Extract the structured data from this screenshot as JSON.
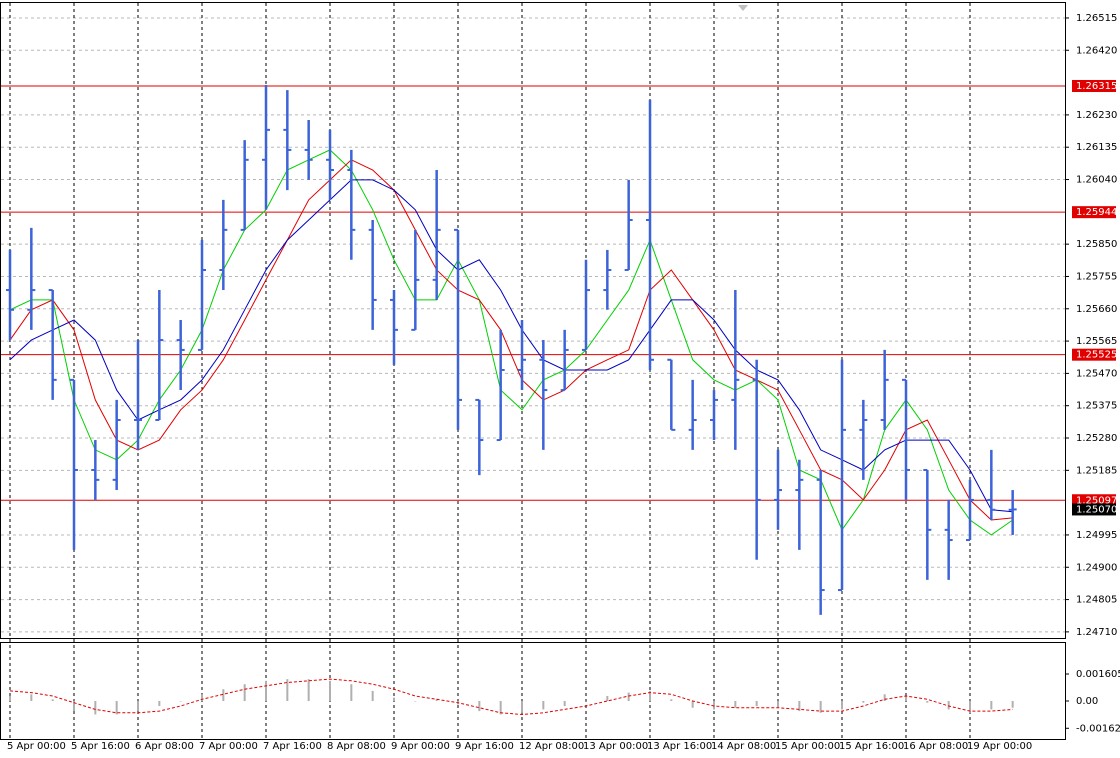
{
  "chart_data": [
    {
      "type": "ohlc",
      "categories": [
        "5 Apr 00:00",
        null,
        null,
        "5 Apr 16:00",
        null,
        null,
        "6 Apr 08:00",
        null,
        null,
        "7 Apr 00:00",
        null,
        null,
        "7 Apr 16:00",
        null,
        null,
        "8 Apr 08:00",
        null,
        null,
        "9 Apr 00:00",
        null,
        null,
        "9 Apr 16:00",
        null,
        null,
        "12 Apr 08:00",
        null,
        null,
        "13 Apr 00:00",
        null,
        null,
        "13 Apr 16:00",
        null,
        null,
        "14 Apr 08:00",
        null,
        null,
        "15 Apr 00:00",
        null,
        null,
        "15 Apr 16:00",
        null,
        null,
        "16 Apr 08:00",
        null,
        null,
        "19 Apr 00:00",
        null,
        null
      ],
      "open": [
        1.25715,
        1.25657,
        1.25715,
        1.25451,
        1.25186,
        1.25157,
        1.25333,
        1.25333,
        1.25568,
        1.25539,
        1.25774,
        1.25892,
        1.26098,
        1.26186,
        1.26127,
        1.26098,
        1.26068,
        1.25892,
        1.25686,
        1.25598,
        1.25745,
        1.25892,
        1.25392,
        1.25274,
        1.2548,
        1.2551,
        1.25421,
        1.25539,
        1.25715,
        1.25774,
        1.25921,
        1.2551,
        1.25304,
        1.25333,
        1.25392,
        1.25451,
        1.25098,
        1.25127,
        1.25157,
        1.24833,
        1.25304,
        1.25333,
        1.25451,
        1.25186,
        1.2501,
        1.2498,
        1.25098,
        1.25069
      ],
      "high": [
        1.25833,
        1.25898,
        1.25715,
        1.25451,
        1.25274,
        1.25392,
        1.25568,
        1.25715,
        1.25627,
        1.25862,
        1.2598,
        1.26156,
        1.26318,
        1.26303,
        1.26215,
        1.26186,
        1.26127,
        1.25921,
        1.25715,
        1.25892,
        1.26068,
        1.25892,
        1.25392,
        1.25598,
        1.25627,
        1.25568,
        1.25598,
        1.25804,
        1.25833,
        1.26039,
        1.26274,
        1.2551,
        1.25451,
        1.25421,
        1.25715,
        1.2551,
        1.25245,
        1.25216,
        1.25186,
        1.2551,
        1.25392,
        1.25539,
        1.25451,
        1.25186,
        1.25098,
        1.25157,
        1.25245,
        1.25127
      ],
      "low": [
        1.25568,
        1.25598,
        1.25392,
        1.24951,
        1.25098,
        1.25127,
        1.25245,
        1.25333,
        1.25421,
        1.25539,
        1.25715,
        1.25892,
        1.25951,
        1.26009,
        1.26039,
        1.2598,
        1.25804,
        1.25598,
        1.25495,
        1.25598,
        1.25686,
        1.25304,
        1.25171,
        1.25274,
        1.25421,
        1.25245,
        1.25421,
        1.25539,
        1.25657,
        1.25774,
        1.2548,
        1.25304,
        1.25245,
        1.25274,
        1.25245,
        1.24922,
        1.2501,
        1.24951,
        1.2476,
        1.24833,
        1.25157,
        1.25304,
        1.25098,
        1.24863,
        1.24863,
        1.2498,
        1.25039,
        1.24995
      ],
      "close": [
        1.25657,
        1.25715,
        1.25451,
        1.25186,
        1.25157,
        1.25333,
        1.25333,
        1.25568,
        1.25539,
        1.25774,
        1.25892,
        1.26098,
        1.26186,
        1.26127,
        1.26098,
        1.26068,
        1.25892,
        1.25686,
        1.25598,
        1.25745,
        1.25892,
        1.25392,
        1.25274,
        1.2548,
        1.2551,
        1.25421,
        1.25539,
        1.25715,
        1.25774,
        1.25921,
        1.2551,
        1.25304,
        1.25333,
        1.25392,
        1.25451,
        1.25098,
        1.25127,
        1.25157,
        1.24833,
        1.25304,
        1.25333,
        1.25451,
        1.25186,
        1.2501,
        1.2498,
        1.25098,
        1.25069,
        1.2507
      ],
      "color": "#3d63d8",
      "series": [
        {
          "color": "#00d000",
          "values": [
            1.25657,
            1.25686,
            1.25686,
            1.25392,
            1.25245,
            1.25216,
            1.25274,
            1.25392,
            1.2548,
            1.25598,
            1.25774,
            1.25892,
            1.25951,
            1.26068,
            1.26098,
            1.26127,
            1.26068,
            1.25951,
            1.25804,
            1.25686,
            1.25686,
            1.25804,
            1.25686,
            1.25421,
            1.25363,
            1.25451,
            1.2548,
            1.25539,
            1.25627,
            1.25715,
            1.25862,
            1.25686,
            1.2551,
            1.25451,
            1.25421,
            1.25451,
            1.25392,
            1.25186,
            1.25157,
            1.2501,
            1.25098,
            1.25304,
            1.25392,
            1.25304,
            1.25127,
            1.25039,
            1.24995,
            1.25039
          ]
        },
        {
          "color": "#e00000",
          "values": [
            1.25568,
            1.25657,
            1.25686,
            1.25598,
            1.25392,
            1.25274,
            1.25245,
            1.25274,
            1.25363,
            1.25421,
            1.2551,
            1.25627,
            1.25745,
            1.25862,
            1.2598,
            1.26039,
            1.26098,
            1.26068,
            1.26009,
            1.25892,
            1.25774,
            1.25715,
            1.25686,
            1.25598,
            1.25451,
            1.25392,
            1.25421,
            1.2548,
            1.2551,
            1.25539,
            1.25715,
            1.25774,
            1.25686,
            1.25598,
            1.2548,
            1.25451,
            1.25421,
            1.25304,
            1.25186,
            1.25157,
            1.25098,
            1.25186,
            1.25304,
            1.25333,
            1.25216,
            1.25098,
            1.25039,
            1.25045
          ]
        },
        {
          "color": "#0000c0",
          "values": [
            1.2551,
            1.25568,
            1.25598,
            1.25627,
            1.25568,
            1.25421,
            1.25333,
            1.25363,
            1.25392,
            1.25451,
            1.25539,
            1.25657,
            1.25774,
            1.25862,
            1.25921,
            1.2598,
            1.26039,
            1.26039,
            1.26009,
            1.25951,
            1.25833,
            1.25774,
            1.25804,
            1.25715,
            1.25598,
            1.2551,
            1.2548,
            1.2548,
            1.2548,
            1.2551,
            1.25598,
            1.25686,
            1.25686,
            1.25627,
            1.25539,
            1.2548,
            1.25451,
            1.25363,
            1.25245,
            1.25216,
            1.25186,
            1.25245,
            1.25274,
            1.25274,
            1.25274,
            1.25186,
            1.25069,
            1.25063
          ]
        }
      ],
      "levels": [
        1.26315,
        1.25944,
        1.25525,
        1.25097
      ],
      "level_color": "#e00000",
      "current_price": {
        "value": 1.2507,
        "label": "1.25070"
      },
      "ylim": [
        1.24692,
        1.26559
      ],
      "yticks": [
        1.26515,
        {
          "value": 1.2642,
          "label": "1.26420"
        },
        {
          "value": 1.2623,
          "label": "1.26230"
        },
        1.26135,
        {
          "value": 1.2604,
          "label": "1.26040"
        },
        {
          "value": 1.2585,
          "label": "1.25850"
        },
        1.25755,
        {
          "value": 1.2566,
          "label": "1.25660"
        },
        1.25565,
        {
          "value": 1.2547,
          "label": "1.25470"
        },
        1.25375,
        {
          "value": 1.2528,
          "label": "1.25280"
        },
        1.25185,
        1.24995,
        {
          "value": 1.249,
          "label": "1.24900"
        },
        1.24805,
        {
          "value": 1.2471,
          "label": "1.24710"
        }
      ],
      "grid": true
    },
    {
      "type": "macd",
      "histogram": [
        0.0003,
        0.0004,
        0.0001,
        -0.0006,
        -0.0008,
        -0.0008,
        -0.0006,
        -0.0003,
        0,
        0.0004,
        0.0007,
        0.001,
        0.0012,
        0.0013,
        0.0013,
        0.0012,
        0.001,
        0.0006,
        0.0002,
        0,
        0.0001,
        -0.0002,
        -0.0006,
        -0.0008,
        -0.0007,
        -0.0005,
        -0.0003,
        0,
        0.0003,
        0.0005,
        0.0006,
        0.0001,
        -0.0004,
        -0.0005,
        -0.0004,
        -0.0003,
        -0.0004,
        -0.0006,
        -0.0007,
        -0.0005,
        -0.0001,
        0.0004,
        0.0003,
        -0.0001,
        -0.0005,
        -0.0007,
        -0.0005,
        -0.0004
      ],
      "signal": [
        0.0006,
        0.0005,
        0.0003,
        -0.0001,
        -0.0005,
        -0.0007,
        -0.0007,
        -0.0006,
        -0.0003,
        0.0001,
        0.0004,
        0.0007,
        0.0009,
        0.0011,
        0.0012,
        0.0013,
        0.0012,
        0.001,
        0.0007,
        0.0003,
        0.0001,
        -0.0001,
        -0.0004,
        -0.0007,
        -0.0008,
        -0.0007,
        -0.0005,
        -0.0003,
        0,
        0.0003,
        0.0005,
        0.0004,
        0,
        -0.0003,
        -0.0004,
        -0.0004,
        -0.0004,
        -0.0005,
        -0.0006,
        -0.0006,
        -0.0003,
        0.0001,
        0.0003,
        0.0001,
        -0.0003,
        -0.0006,
        -0.0006,
        -0.0005
      ],
      "histogram_color": "#b0b0b0",
      "signal_color": "#e00000",
      "ylim": [
        -0.00226,
        0.00345
      ],
      "yticks": [
        0.001605,
        {
          "value": 0,
          "label": "0.00"
        },
        -0.001622
      ]
    }
  ]
}
